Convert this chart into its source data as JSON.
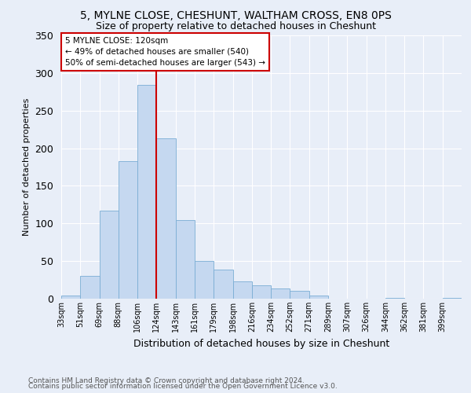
{
  "title1": "5, MYLNE CLOSE, CHESHUNT, WALTHAM CROSS, EN8 0PS",
  "title2": "Size of property relative to detached houses in Cheshunt",
  "xlabel": "Distribution of detached houses by size in Cheshunt",
  "ylabel": "Number of detached properties",
  "categories": [
    "33sqm",
    "51sqm",
    "69sqm",
    "88sqm",
    "106sqm",
    "124sqm",
    "143sqm",
    "161sqm",
    "179sqm",
    "198sqm",
    "216sqm",
    "234sqm",
    "252sqm",
    "271sqm",
    "289sqm",
    "307sqm",
    "326sqm",
    "344sqm",
    "362sqm",
    "381sqm",
    "399sqm"
  ],
  "values": [
    4,
    30,
    117,
    183,
    284,
    213,
    105,
    50,
    39,
    23,
    18,
    14,
    10,
    4,
    0,
    0,
    0,
    1,
    0,
    0,
    1
  ],
  "bar_color": "#c5d8f0",
  "bar_edge_color": "#7aadd4",
  "vline_color": "#cc0000",
  "vline_x_index": 5,
  "annotation_text": "5 MYLNE CLOSE: 120sqm\n← 49% of detached houses are smaller (540)\n50% of semi-detached houses are larger (543) →",
  "annotation_box_color": "#ffffff",
  "annotation_box_edge": "#cc0000",
  "background_color": "#e8eef8",
  "grid_color": "#ffffff",
  "footer1": "Contains HM Land Registry data © Crown copyright and database right 2024.",
  "footer2": "Contains public sector information licensed under the Open Government Licence v3.0.",
  "ylim": [
    0,
    350
  ],
  "title1_fontsize": 10,
  "title2_fontsize": 9,
  "ylabel_fontsize": 8,
  "xlabel_fontsize": 9
}
